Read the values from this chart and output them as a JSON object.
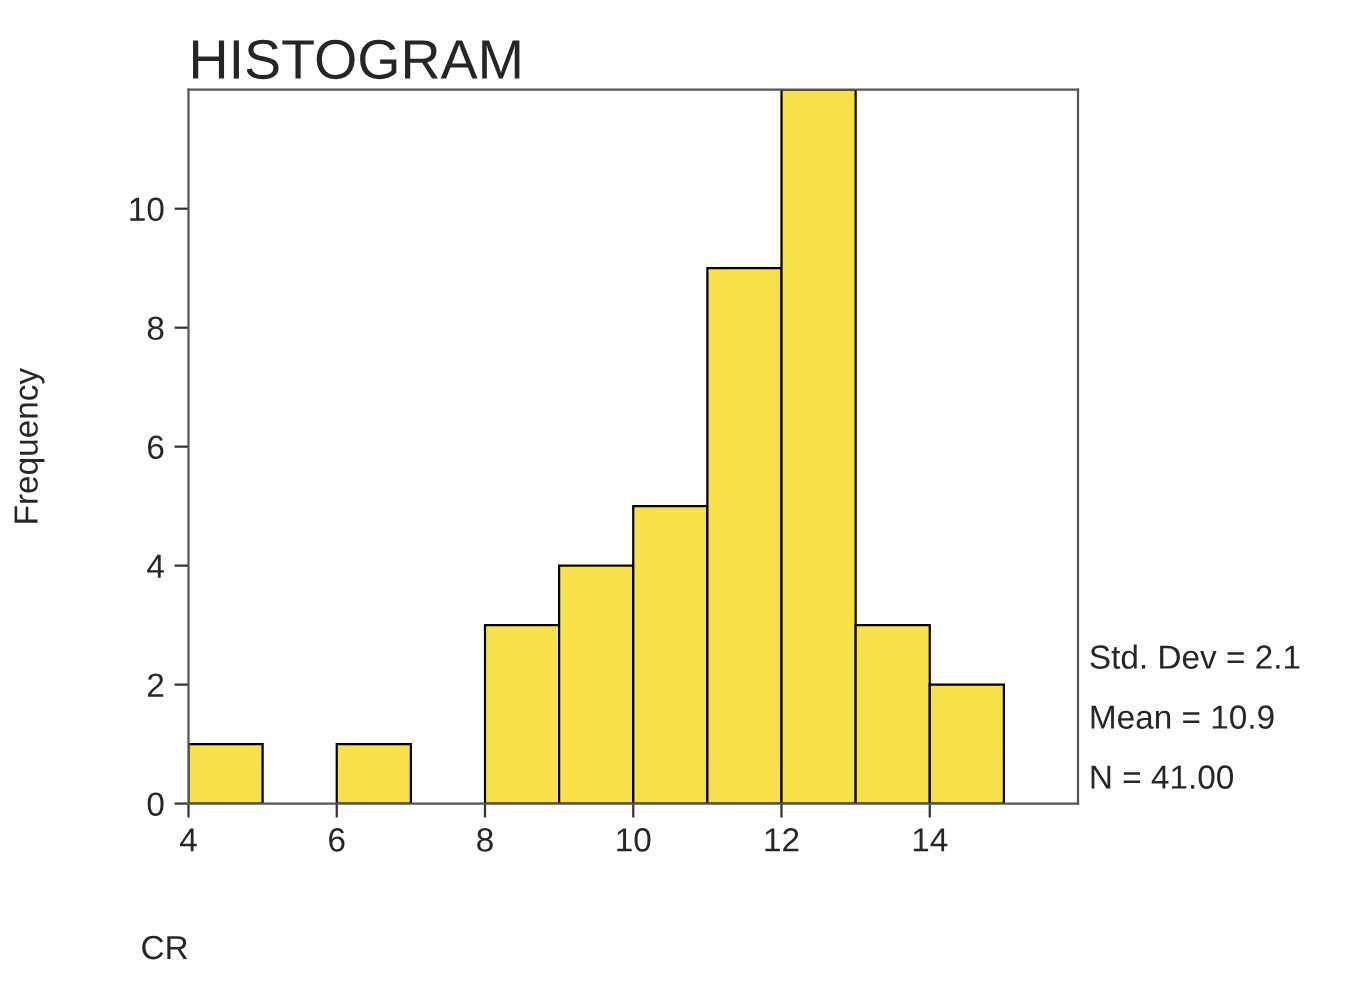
{
  "chart_data": {
    "type": "histogram",
    "title": "HISTOGRAM",
    "xlabel": "CR",
    "ylabel": "Frequency",
    "bins": [
      4,
      5,
      6,
      7,
      8,
      9,
      10,
      11,
      12,
      13,
      14,
      15
    ],
    "values": [
      1,
      0,
      1,
      0,
      3,
      4,
      5,
      9,
      12,
      3,
      2
    ],
    "color": "#f7e04b",
    "xlim": [
      4,
      16
    ],
    "ylim": [
      0,
      12
    ],
    "xticks": [
      4,
      6,
      8,
      10,
      12,
      14
    ],
    "yticks": [
      0,
      2,
      4,
      6,
      8,
      10
    ],
    "grid": false,
    "annotations": [
      "Std. Dev = 2.1",
      "Mean = 10.9",
      "N = 41.00"
    ]
  }
}
